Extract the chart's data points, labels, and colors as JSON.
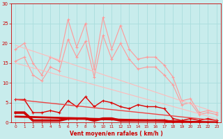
{
  "xlabel": "Vent moyen/en rafales ( km/h )",
  "xlim": [
    -0.5,
    23.5
  ],
  "ylim": [
    0,
    30
  ],
  "yticks": [
    0,
    5,
    10,
    15,
    20,
    25,
    30
  ],
  "xticks": [
    0,
    1,
    2,
    3,
    4,
    5,
    6,
    7,
    8,
    9,
    10,
    11,
    12,
    13,
    14,
    15,
    16,
    17,
    18,
    19,
    20,
    21,
    22,
    23
  ],
  "bg_color": "#c8ecec",
  "grid_color": "#aadddd",
  "series": [
    {
      "x": [
        0,
        1,
        2,
        3,
        4,
        5,
        6,
        7,
        8,
        9,
        10,
        11,
        12,
        13,
        14,
        15,
        16,
        17,
        18,
        19,
        20,
        21,
        22,
        23
      ],
      "y": [
        18.5,
        20.0,
        15.0,
        12.0,
        16.5,
        15.5,
        26.0,
        19.0,
        25.0,
        13.5,
        26.5,
        18.5,
        24.5,
        18.5,
        16.0,
        16.5,
        16.5,
        14.5,
        11.5,
        5.5,
        6.0,
        2.5,
        3.0,
        2.5
      ],
      "color": "#ff9999",
      "marker": "+",
      "markersize": 3,
      "linewidth": 0.8
    },
    {
      "x": [
        0,
        1,
        2,
        3,
        4,
        5,
        6,
        7,
        8,
        9,
        10,
        11,
        12,
        13,
        14,
        15,
        16,
        17,
        18,
        19,
        20,
        21,
        22,
        23
      ],
      "y": [
        15.5,
        16.5,
        12.0,
        10.5,
        14.0,
        13.0,
        21.0,
        16.5,
        20.5,
        11.5,
        22.0,
        16.0,
        20.0,
        16.0,
        13.5,
        14.0,
        14.0,
        12.0,
        9.5,
        4.5,
        5.0,
        2.0,
        2.5,
        2.0
      ],
      "color": "#ff9999",
      "marker": "+",
      "markersize": 3,
      "linewidth": 0.8
    },
    {
      "x": [
        0,
        23
      ],
      "y": [
        19.5,
        2.5
      ],
      "color": "#ffbbbb",
      "marker": null,
      "linewidth": 0.8,
      "linestyle": "-"
    },
    {
      "x": [
        0,
        23
      ],
      "y": [
        15.0,
        1.0
      ],
      "color": "#ffbbbb",
      "marker": null,
      "linewidth": 0.8,
      "linestyle": "-"
    },
    {
      "x": [
        0,
        1,
        2,
        3,
        4,
        5,
        6,
        7,
        8,
        9,
        10,
        11,
        12,
        13,
        14,
        15,
        16,
        17,
        18,
        19,
        20,
        21,
        22,
        23
      ],
      "y": [
        5.8,
        5.8,
        2.5,
        2.5,
        3.0,
        2.5,
        5.5,
        4.0,
        6.5,
        4.0,
        5.5,
        5.0,
        4.0,
        3.5,
        4.5,
        4.0,
        4.0,
        3.5,
        1.0,
        0.5,
        1.0,
        0.5,
        1.0,
        0.5
      ],
      "color": "#dd0000",
      "marker": "+",
      "markersize": 3,
      "linewidth": 1.0
    },
    {
      "x": [
        0,
        1,
        2,
        3,
        4,
        5,
        6,
        7,
        8,
        9,
        10,
        11,
        12,
        13,
        14,
        15,
        16,
        17,
        18,
        19,
        20,
        21,
        22,
        23
      ],
      "y": [
        2.5,
        2.5,
        0.5,
        0.5,
        0.5,
        0.5,
        1.0,
        1.0,
        1.0,
        0.5,
        1.0,
        1.0,
        0.5,
        0.5,
        0.5,
        0.5,
        0.5,
        0.5,
        0.0,
        0.0,
        0.0,
        0.0,
        0.0,
        0.0
      ],
      "color": "#cc0000",
      "marker": "+",
      "markersize": 2.5,
      "linewidth": 2.5
    },
    {
      "x": [
        0,
        23
      ],
      "y": [
        5.8,
        0.5
      ],
      "color": "#ee4444",
      "marker": null,
      "linewidth": 1.0,
      "linestyle": "-"
    },
    {
      "x": [
        0,
        23
      ],
      "y": [
        1.5,
        0.0
      ],
      "color": "#cc0000",
      "marker": null,
      "linewidth": 2.0,
      "linestyle": "-"
    }
  ]
}
